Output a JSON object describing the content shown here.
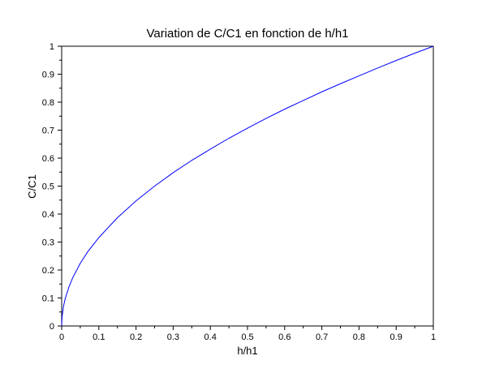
{
  "chart_data": {
    "type": "line",
    "title": "Variation de C/C1 en fonction de h/h1",
    "xlabel": "h/h1",
    "ylabel": "C/C1",
    "xlim": [
      0,
      1
    ],
    "ylim": [
      0,
      1
    ],
    "xticks": [
      "0",
      "0.1",
      "0.2",
      "0.3",
      "0.4",
      "0.5",
      "0.6",
      "0.7",
      "0.8",
      "0.9",
      "1"
    ],
    "yticks": [
      "0",
      "0.1",
      "0.2",
      "0.3",
      "0.4",
      "0.5",
      "0.6",
      "0.7",
      "0.8",
      "0.9",
      "1"
    ],
    "grid": false,
    "legend": "none",
    "series": [
      {
        "color": "#0000ff",
        "x": [
          0,
          0.001,
          0.005,
          0.01,
          0.02,
          0.03,
          0.05,
          0.07,
          0.1,
          0.15,
          0.2,
          0.25,
          0.3,
          0.35,
          0.4,
          0.45,
          0.5,
          0.55,
          0.6,
          0.65,
          0.7,
          0.75,
          0.8,
          0.85,
          0.9,
          0.95,
          1
        ],
        "y": [
          0,
          0.032,
          0.071,
          0.1,
          0.141,
          0.173,
          0.224,
          0.265,
          0.316,
          0.387,
          0.447,
          0.5,
          0.548,
          0.592,
          0.632,
          0.671,
          0.707,
          0.742,
          0.775,
          0.806,
          0.837,
          0.866,
          0.894,
          0.922,
          0.949,
          0.975,
          1
        ]
      }
    ]
  }
}
